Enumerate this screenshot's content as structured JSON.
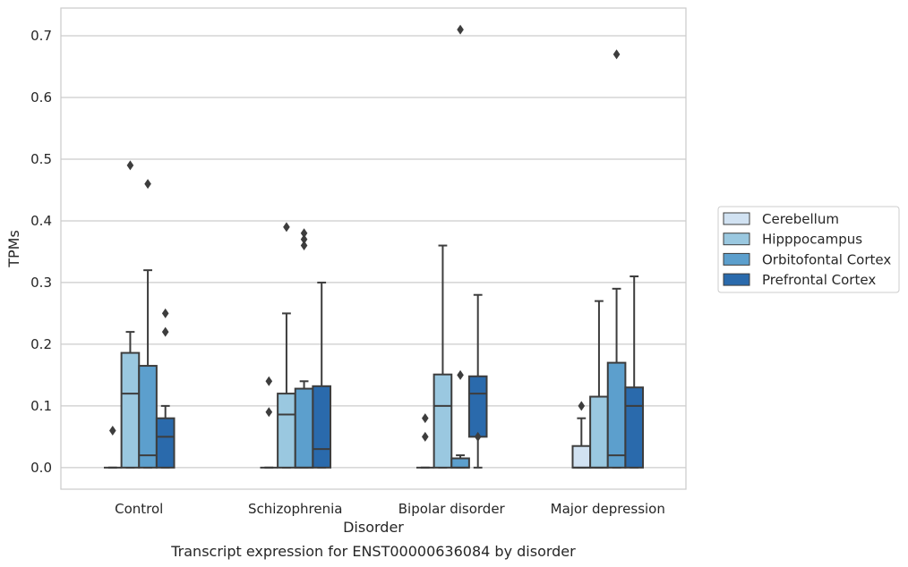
{
  "chart_data": {
    "type": "box",
    "caption": "Transcript expression for ENST00000636084 by disorder",
    "xlabel": "Disorder",
    "ylabel": "TPMs",
    "ylim": [
      -0.035,
      0.745
    ],
    "yticks": [
      0.0,
      0.1,
      0.2,
      0.3,
      0.4,
      0.5,
      0.6,
      0.7
    ],
    "ytick_labels": [
      "0.0",
      "0.1",
      "0.2",
      "0.3",
      "0.4",
      "0.5",
      "0.6",
      "0.7"
    ],
    "grid": "horizontal",
    "legend_position": "right",
    "categories": [
      "Control",
      "Schizophrenia",
      "Bipolar disorder",
      "Major depression"
    ],
    "series": [
      {
        "name": "Cerebellum",
        "color": "#d1e2f2",
        "boxes": [
          {
            "whislo": 0.0,
            "q1": 0.0,
            "med": 0.0,
            "q3": 0.0,
            "whishi": 0.0,
            "fliers": [
              0.06
            ]
          },
          {
            "whislo": 0.0,
            "q1": 0.0,
            "med": 0.0,
            "q3": 0.0,
            "whishi": 0.0,
            "fliers": [
              0.14,
              0.09
            ]
          },
          {
            "whislo": 0.0,
            "q1": 0.0,
            "med": 0.0,
            "q3": 0.0,
            "whishi": 0.0,
            "fliers": [
              0.08,
              0.05
            ]
          },
          {
            "whislo": 0.0,
            "q1": 0.0,
            "med": 0.0,
            "q3": 0.035,
            "whishi": 0.08,
            "fliers": [
              0.1
            ]
          }
        ]
      },
      {
        "name": "Hipppocampus",
        "color": "#9ac8e0",
        "boxes": [
          {
            "whislo": 0.0,
            "q1": 0.0,
            "med": 0.12,
            "q3": 0.186,
            "whishi": 0.22,
            "fliers": [
              0.49
            ]
          },
          {
            "whislo": 0.0,
            "q1": 0.0,
            "med": 0.086,
            "q3": 0.12,
            "whishi": 0.25,
            "fliers": [
              0.39
            ]
          },
          {
            "whislo": 0.0,
            "q1": 0.0,
            "med": 0.1,
            "q3": 0.151,
            "whishi": 0.36,
            "fliers": []
          },
          {
            "whislo": 0.0,
            "q1": 0.0,
            "med": 0.0,
            "q3": 0.115,
            "whishi": 0.27,
            "fliers": []
          }
        ]
      },
      {
        "name": "Orbitofontal Cortex",
        "color": "#5c9fcd",
        "boxes": [
          {
            "whislo": 0.0,
            "q1": 0.0,
            "med": 0.02,
            "q3": 0.165,
            "whishi": 0.32,
            "fliers": [
              0.46
            ]
          },
          {
            "whislo": 0.0,
            "q1": 0.0,
            "med": 0.0,
            "q3": 0.128,
            "whishi": 0.14,
            "fliers": [
              0.38,
              0.37,
              0.36
            ]
          },
          {
            "whislo": 0.0,
            "q1": 0.0,
            "med": 0.0,
            "q3": 0.015,
            "whishi": 0.02,
            "fliers": [
              0.15,
              0.71
            ]
          },
          {
            "whislo": 0.0,
            "q1": 0.0,
            "med": 0.02,
            "q3": 0.17,
            "whishi": 0.29,
            "fliers": [
              0.67
            ]
          }
        ]
      },
      {
        "name": "Prefrontal Cortex",
        "color": "#2a6aac",
        "boxes": [
          {
            "whislo": 0.0,
            "q1": 0.0,
            "med": 0.05,
            "q3": 0.08,
            "whishi": 0.1,
            "fliers": [
              0.25,
              0.22
            ]
          },
          {
            "whislo": 0.0,
            "q1": 0.0,
            "med": 0.03,
            "q3": 0.132,
            "whishi": 0.3,
            "fliers": []
          },
          {
            "whislo": 0.0,
            "q1": 0.05,
            "med": 0.12,
            "q3": 0.148,
            "whishi": 0.28,
            "fliers": [
              0.05
            ]
          },
          {
            "whislo": 0.0,
            "q1": 0.0,
            "med": 0.1,
            "q3": 0.13,
            "whishi": 0.31,
            "fliers": []
          }
        ]
      }
    ]
  }
}
